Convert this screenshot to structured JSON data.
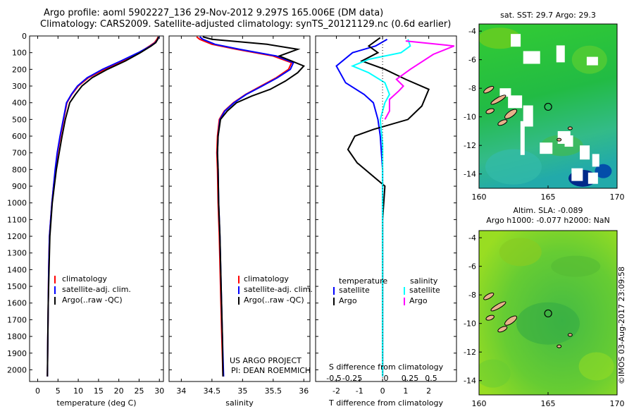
{
  "header": {
    "line1": "Argo profile: aoml 5902227_136 29-Nov-2012 9.297S 165.006E (DM data)",
    "line2": "Climatology: CARS2009. Satellite-adjusted climatology: synTS_20121129.nc (0.6d earlier)"
  },
  "stamp": "©IMOS 03-Aug-2017 23:09:58",
  "colors": {
    "climatology": "#ff0000",
    "satellite": "#0000ff",
    "argo": "#000000",
    "s_satellite": "#00ffff",
    "s_argo": "#ff00ff",
    "land": "#e8b28a"
  },
  "chart_data": [
    {
      "type": "line",
      "id": "temperature",
      "xlabel": "temperature (deg C)",
      "ylabel": "",
      "xlim": [
        -2,
        31
      ],
      "ylim": [
        2070,
        0
      ],
      "xticks": [
        0,
        5,
        10,
        15,
        20,
        25,
        30
      ],
      "yticks": [
        0,
        100,
        200,
        300,
        400,
        500,
        600,
        700,
        800,
        900,
        1000,
        1100,
        1200,
        1300,
        1400,
        1500,
        1600,
        1700,
        1800,
        1900,
        2000
      ],
      "legend": [
        "climatology",
        "satellite-adj. clim.",
        "Argo(..raw -QC)"
      ],
      "series": [
        {
          "name": "climatology",
          "color": "#ff0000",
          "x": [
            29.7,
            29.4,
            28.8,
            27.6,
            25.0,
            21.0,
            16.5,
            12.5,
            10.0,
            8.4,
            7.2,
            6.4,
            5.6,
            4.9,
            4.4,
            3.9,
            3.5,
            3.2,
            2.9,
            2.7,
            2.6,
            2.5,
            2.4
          ],
          "y": [
            5,
            20,
            40,
            60,
            100,
            150,
            200,
            250,
            300,
            350,
            400,
            500,
            600,
            700,
            800,
            900,
            1000,
            1100,
            1200,
            1400,
            1600,
            1800,
            2040
          ]
        },
        {
          "name": "satellite-adj. clim.",
          "color": "#0000ff",
          "x": [
            29.9,
            29.6,
            29.0,
            27.8,
            24.8,
            20.5,
            16.0,
            12.2,
            9.8,
            8.3,
            7.1,
            6.3,
            5.5,
            4.8,
            4.3,
            3.9,
            3.5,
            3.2,
            2.9,
            2.7,
            2.6,
            2.5,
            2.4
          ],
          "y": [
            5,
            20,
            40,
            60,
            100,
            150,
            200,
            250,
            300,
            350,
            400,
            500,
            600,
            700,
            800,
            900,
            1000,
            1100,
            1200,
            1400,
            1600,
            1800,
            2040
          ]
        },
        {
          "name": "Argo(..raw -QC)",
          "color": "#000000",
          "x": [
            29.8,
            29.6,
            29.1,
            28.0,
            25.3,
            21.6,
            17.2,
            13.4,
            10.9,
            9.3,
            7.9,
            6.8,
            6.0,
            5.3,
            4.6,
            4.1,
            3.6,
            3.3,
            3.0,
            2.8,
            2.6,
            2.5,
            2.4
          ],
          "y": [
            5,
            20,
            40,
            60,
            100,
            150,
            200,
            250,
            300,
            350,
            400,
            500,
            600,
            700,
            800,
            900,
            1000,
            1100,
            1200,
            1400,
            1600,
            1800,
            2040
          ]
        }
      ]
    },
    {
      "type": "line",
      "id": "salinity",
      "xlabel": "salinity",
      "xlim": [
        33.8,
        36.1
      ],
      "ylim": [
        2070,
        0
      ],
      "xticks": [
        34,
        34.5,
        35,
        35.5,
        36
      ],
      "legend": [
        "climatology",
        "satellite-adj. clim.",
        "Argo(..raw -QC)"
      ],
      "annotation": [
        "US ARGO PROJECT",
        "PI: DEAN ROEMMICH"
      ],
      "series": [
        {
          "name": "climatology",
          "color": "#ff0000",
          "x": [
            34.25,
            34.3,
            34.5,
            34.9,
            35.5,
            35.8,
            35.75,
            35.55,
            35.3,
            35.05,
            34.85,
            34.7,
            34.62,
            34.59,
            34.58,
            34.59,
            34.6,
            34.62,
            34.64,
            34.66,
            34.68
          ],
          "y": [
            5,
            20,
            50,
            80,
            120,
            160,
            200,
            250,
            300,
            350,
            400,
            450,
            500,
            600,
            700,
            800,
            1000,
            1200,
            1500,
            1800,
            2040
          ]
        },
        {
          "name": "satellite-adj. clim.",
          "color": "#0000ff",
          "x": [
            34.3,
            34.35,
            34.55,
            34.95,
            35.55,
            35.83,
            35.78,
            35.57,
            35.32,
            35.06,
            34.86,
            34.71,
            34.63,
            34.6,
            34.59,
            34.6,
            34.61,
            34.63,
            34.65,
            34.67,
            34.69
          ],
          "y": [
            5,
            20,
            50,
            80,
            120,
            160,
            200,
            250,
            300,
            350,
            400,
            450,
            500,
            600,
            700,
            800,
            1000,
            1200,
            1500,
            1800,
            2040
          ]
        },
        {
          "name": "Argo(..raw -QC)",
          "color": "#000000",
          "x": [
            34.35,
            34.5,
            35.4,
            35.9,
            35.6,
            36.0,
            35.9,
            35.7,
            35.45,
            35.15,
            34.9,
            34.75,
            34.64,
            34.6,
            34.59,
            34.6,
            34.61,
            34.63,
            34.65,
            34.67,
            34.68
          ],
          "y": [
            5,
            20,
            50,
            80,
            120,
            180,
            220,
            270,
            320,
            360,
            400,
            450,
            500,
            600,
            700,
            800,
            1000,
            1200,
            1500,
            1800,
            2040
          ]
        }
      ]
    },
    {
      "type": "line",
      "id": "differences",
      "xlabel": "T difference from climatology",
      "x2label": "S difference from climatology",
      "xlim": [
        -2.9,
        3.2
      ],
      "ylim": [
        2070,
        0
      ],
      "xticks": [
        -2,
        -1,
        0,
        1,
        2
      ],
      "xtick_labels_t": [
        "-2",
        "-1",
        "0",
        "1",
        "2"
      ],
      "x2ticks": [
        -0.5,
        -0.25,
        0,
        0.25,
        0.5
      ],
      "x2tick_labels": [
        "-0.5",
        "-0.25",
        "0",
        "0.25",
        "0.5"
      ],
      "legend_t": {
        "title": "temperature",
        "items": [
          "satellite",
          "Argo"
        ]
      },
      "legend_s": {
        "title": "salinity",
        "items": [
          "satellite",
          "Argo"
        ]
      },
      "series": [
        {
          "name": "T satellite",
          "color": "#0000ff",
          "x": [
            0.2,
            -0.3,
            -1.3,
            -2.0,
            -1.6,
            -0.8,
            -0.4,
            -0.2,
            -0.1,
            0,
            0,
            0
          ],
          "y": [
            20,
            60,
            100,
            180,
            280,
            350,
            400,
            500,
            600,
            800,
            1200,
            2040
          ]
        },
        {
          "name": "T Argo",
          "color": "#000000",
          "x": [
            -0.1,
            -0.6,
            -0.2,
            -0.9,
            0.1,
            1.0,
            2.0,
            1.7,
            1.1,
            -0.4,
            -1.2,
            -1.5,
            -1.1,
            0.1,
            0,
            0
          ],
          "y": [
            10,
            60,
            100,
            150,
            200,
            260,
            320,
            420,
            500,
            560,
            600,
            680,
            760,
            900,
            1100,
            2040
          ]
        },
        {
          "name": "S satellite",
          "color": "#00ffff",
          "x": [
            1.1,
            1.2,
            0.8,
            -0.6,
            -1.3,
            -0.6,
            0.1,
            0.3,
            0.1,
            -0.1,
            0,
            0
          ],
          "y": [
            20,
            60,
            100,
            140,
            180,
            220,
            280,
            350,
            400,
            500,
            650,
            2040
          ]
        },
        {
          "name": "S Argo",
          "color": "#ff00ff",
          "x": [
            1.0,
            3.1,
            2.2,
            1.2,
            0.6,
            0.9,
            0.7,
            0.3,
            0.3,
            0.1
          ],
          "y": [
            30,
            60,
            110,
            200,
            260,
            300,
            330,
            380,
            450,
            500
          ]
        }
      ]
    },
    {
      "type": "heatmap",
      "id": "sst_map",
      "title": "sat. SST: 29.7 Argo: 29.3",
      "xlim": [
        160,
        170
      ],
      "ylim": [
        -15,
        -3.5
      ],
      "xticks": [
        160,
        165,
        170
      ],
      "yticks": [
        -4,
        -6,
        -8,
        -10,
        -12,
        -14
      ],
      "argo_position": [
        165.006,
        -9.297
      ]
    },
    {
      "type": "heatmap",
      "id": "sla_map",
      "title1": "Altim. SLA: -0.089",
      "title2": "Argo h1000: -0.077 h2000: NaN",
      "xlim": [
        160,
        170
      ],
      "ylim": [
        -15,
        -3.5
      ],
      "xticks": [
        160,
        165,
        170
      ],
      "yticks": [
        -4,
        -6,
        -8,
        -10,
        -12,
        -14
      ],
      "argo_position": [
        165.006,
        -9.297
      ]
    }
  ]
}
